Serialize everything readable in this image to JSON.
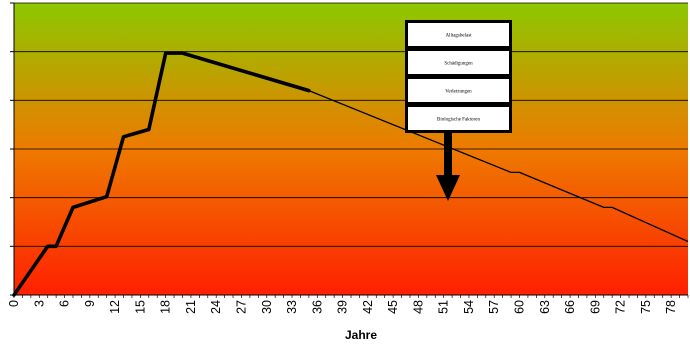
{
  "chart_data": {
    "type": "line",
    "xlabel": "Jahre",
    "ylabel": "",
    "title": "",
    "xlim": [
      0,
      80
    ],
    "ylim": [
      0,
      6
    ],
    "x_tick_labels": [
      "0",
      "3",
      "6",
      "9",
      "12",
      "15",
      "18",
      "21",
      "24",
      "27",
      "30",
      "33",
      "36",
      "39",
      "42",
      "45",
      "48",
      "51",
      "54",
      "57",
      "60",
      "63",
      "66",
      "69",
      "72",
      "75",
      "78"
    ],
    "grid": "horizontal",
    "background": "gradient green (top) to red (bottom)",
    "colors": {
      "top": "#8cc800",
      "bottom": "#ff2000",
      "line": "#000000",
      "arrow": "#000000"
    },
    "series": [
      {
        "x": [
          0,
          4,
          5,
          7,
          11,
          13,
          16,
          18,
          20,
          35,
          59,
          60,
          70,
          71,
          80
        ],
        "y": [
          0,
          1,
          1,
          1.8,
          2.02,
          3.25,
          3.4,
          4.97,
          4.97,
          4.2,
          2.52,
          2.52,
          1.8,
          1.8,
          1.1
        ],
        "thick_until_x": 35
      }
    ],
    "factor_boxes": [
      {
        "label": "Alltagsbelast"
      },
      {
        "label": "Schädigungen"
      },
      {
        "label": "Verletzungen"
      },
      {
        "label": "Biologische Faktoren"
      }
    ]
  }
}
